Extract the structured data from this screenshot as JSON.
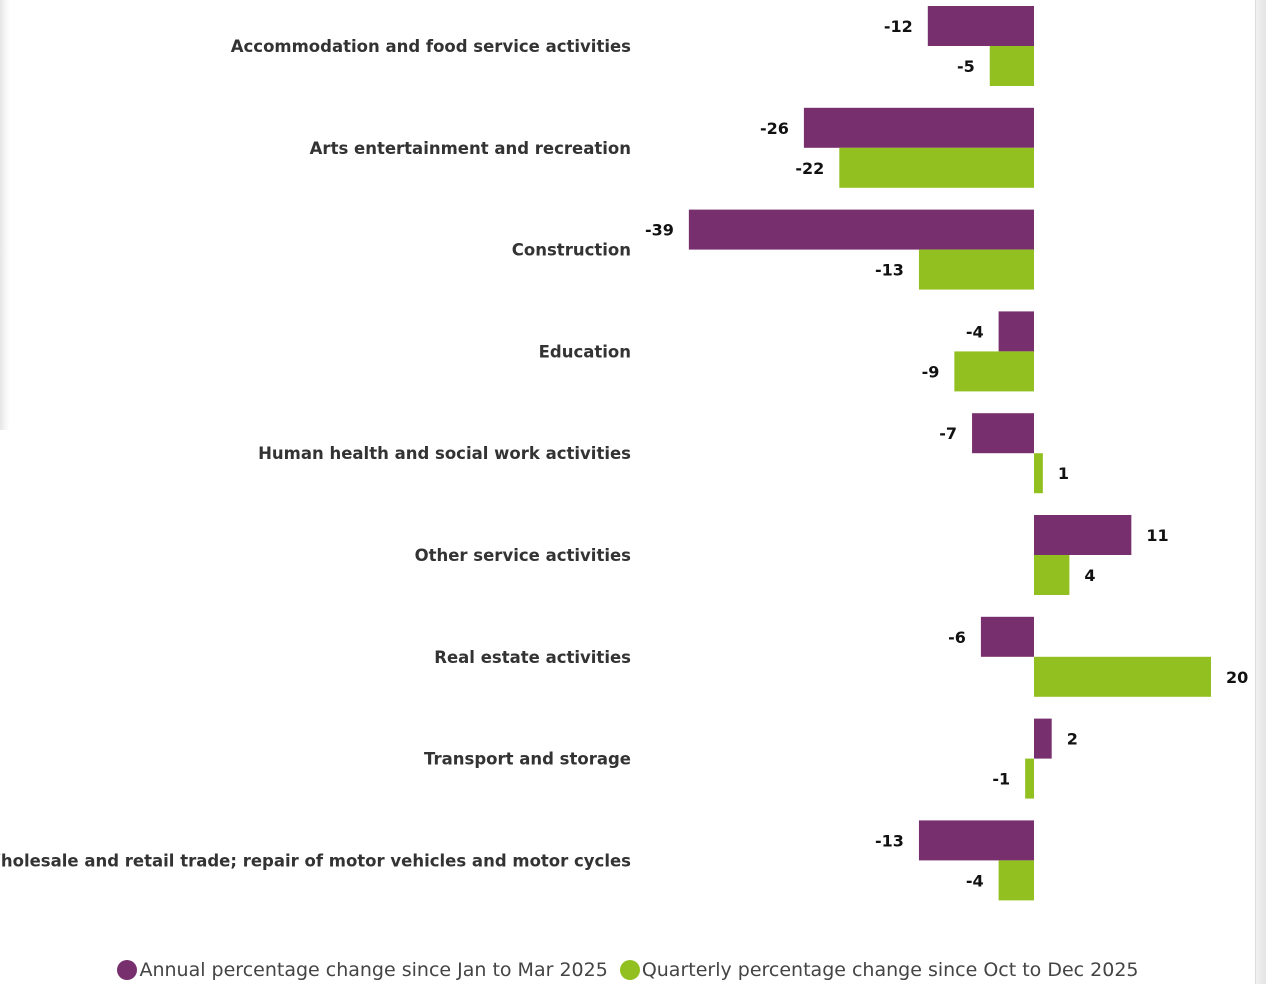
{
  "colors": {
    "annual": "#772f6d",
    "quarterly": "#92c021"
  },
  "chart_data": {
    "type": "bar",
    "orientation": "horizontal",
    "title": "",
    "xlabel": "",
    "ylabel": "",
    "categories": [
      "Accommodation and food service activities",
      "Arts entertainment and recreation",
      "Construction",
      "Education",
      "Human health and social work activities",
      "Other service activities",
      "Real estate activities",
      "Transport and storage",
      "Wholesale and retail trade; repair of motor vehicles and motor cycles"
    ],
    "series": [
      {
        "name": "Annual percentage change since Jan to Mar 2025",
        "values": [
          -12,
          -26,
          -39,
          -4,
          -7,
          11,
          -6,
          2,
          -13
        ]
      },
      {
        "name": "Quarterly percentage change since Oct to Dec 2025",
        "values": [
          -5,
          -22,
          -13,
          -9,
          1,
          4,
          20,
          -1,
          -4
        ]
      }
    ],
    "xlim": [
      -39,
      20
    ],
    "grid": false,
    "legend_position": "bottom",
    "data_labels": true
  },
  "legend": {
    "annual_label": "Annual percentage change since Jan to Mar 2025",
    "quarterly_label": "Quarterly percentage change since Oct to Dec 2025"
  }
}
